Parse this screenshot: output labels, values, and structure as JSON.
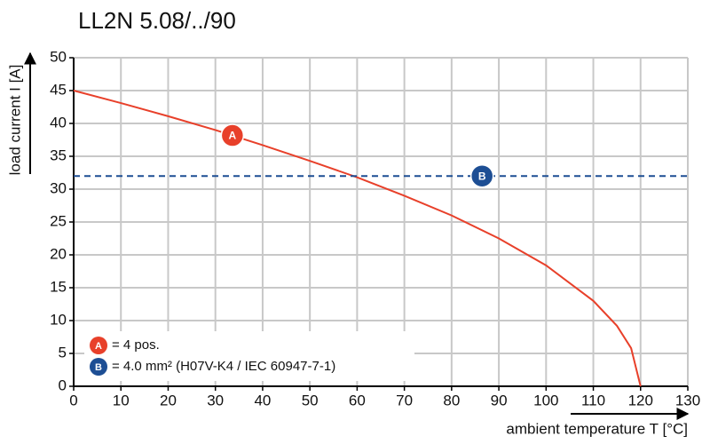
{
  "chart_data": {
    "type": "line",
    "title": "LL2N 5.08/../90",
    "x_label": "ambient temperature T [°C]",
    "y_label": "load current I [A]",
    "xlim": [
      0,
      130
    ],
    "xticks": [
      0,
      10,
      20,
      30,
      40,
      50,
      60,
      70,
      80,
      90,
      100,
      110,
      120,
      130
    ],
    "ylim": [
      0,
      50
    ],
    "yticks": [
      0,
      5,
      10,
      15,
      20,
      25,
      30,
      35,
      40,
      45,
      50
    ],
    "grid": true,
    "legend": "bottom-left",
    "series": [
      {
        "name": "A",
        "description": "= 4 pos.",
        "color": "#e8402a",
        "style": "solid",
        "x": [
          0,
          10,
          20,
          30,
          40,
          50,
          60,
          70,
          80,
          90,
          100,
          110,
          115,
          118,
          120
        ],
        "values": [
          45,
          43.1,
          41.1,
          39.0,
          36.7,
          34.3,
          31.8,
          29.0,
          26.0,
          22.5,
          18.4,
          13.0,
          9.2,
          5.8,
          0
        ]
      },
      {
        "name": "B",
        "description": "= 4.0 mm² (H07V-K4 / IEC 60947-7-1)",
        "color": "#1d4e94",
        "style": "dashed",
        "x": [
          0,
          130
        ],
        "values": [
          32,
          32
        ]
      }
    ]
  }
}
